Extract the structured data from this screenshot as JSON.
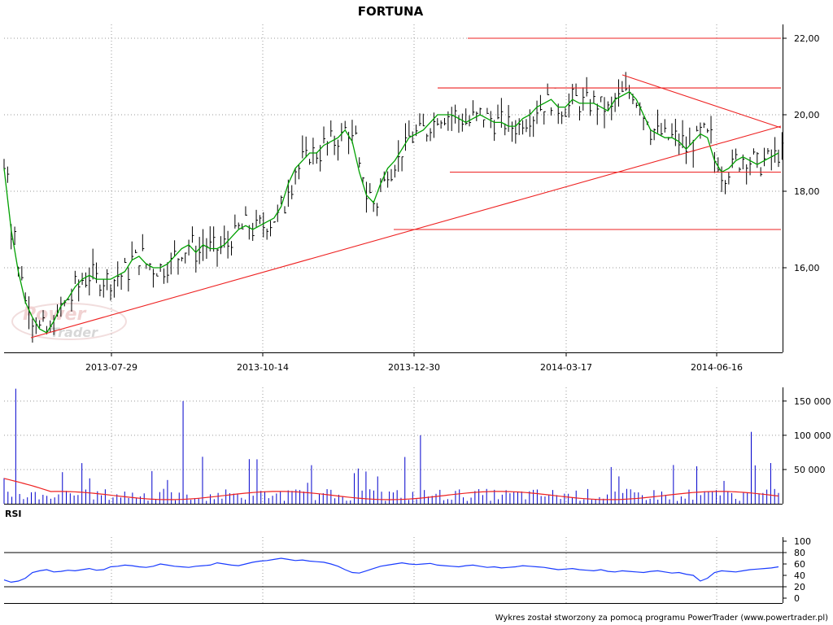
{
  "chart_data": [
    {
      "type": "candlestick",
      "title": "FORTUNA",
      "x_tick_labels": [
        "2013-07-29",
        "2013-10-14",
        "2013-12-30",
        "2014-03-17",
        "2014-06-16"
      ],
      "y_tick_labels": [
        "22,00",
        "20,00",
        "18,00",
        "16,00"
      ],
      "ylim": [
        14.2,
        22.3
      ],
      "grid": true,
      "series": [
        {
          "values": [
            18.6,
            17.0,
            15.9,
            15.1,
            14.7,
            14.4,
            14.3,
            14.6,
            15.0,
            15.2,
            15.5,
            15.7,
            15.8,
            15.7,
            15.7,
            15.7,
            15.8,
            15.9,
            16.2,
            16.3,
            16.1,
            16.0,
            16.0,
            16.1,
            16.3,
            16.5,
            16.6,
            16.4,
            16.6,
            16.5,
            16.5,
            16.6,
            16.8,
            17.0,
            17.1,
            17.0,
            17.1,
            17.2,
            17.3,
            17.6,
            18.2,
            18.6,
            18.8,
            19.0,
            19.0,
            19.2,
            19.3,
            19.4,
            19.6,
            19.3,
            18.5,
            17.9,
            17.7,
            18.2,
            18.6,
            18.8,
            19.1,
            19.4,
            19.5,
            19.6,
            19.8,
            20.0,
            20.0,
            20.0,
            19.9,
            19.8,
            19.9,
            20.0,
            19.9,
            19.8,
            19.8,
            19.7,
            19.7,
            19.9,
            20.0,
            20.2,
            20.3,
            20.4,
            20.2,
            20.2,
            20.4,
            20.3,
            20.3,
            20.3,
            20.2,
            20.1,
            20.4,
            20.5,
            20.6,
            20.4,
            20.0,
            19.6,
            19.5,
            19.4,
            19.4,
            19.3,
            19.1,
            19.3,
            19.5,
            19.4,
            18.8,
            18.5,
            18.6,
            18.8,
            18.9,
            18.8,
            18.7,
            18.8,
            18.9,
            19.0
          ],
          "start_date": "2013-06-10",
          "end_date": "2014-07-11"
        }
      ],
      "annotations": [
        {
          "label": "22,00",
          "value": 22.0
        },
        {
          "label": "20,70",
          "value": 20.7
        },
        {
          "label": "18,50",
          "value": 18.5
        },
        {
          "label": "17,00",
          "value": 17.0
        }
      ]
    },
    {
      "type": "bar",
      "y_tick_labels": [
        "150 000",
        "100 000",
        "50 000"
      ],
      "ylim": [
        0,
        170000
      ]
    },
    {
      "type": "line",
      "title": "RSI",
      "y_tick_labels": [
        "100",
        "80",
        "60",
        "40",
        "20",
        "0"
      ],
      "ylim": [
        0,
        100
      ],
      "reference_lines": [
        20,
        80
      ],
      "series": [
        {
          "values": [
            32,
            28,
            30,
            35,
            45,
            48,
            50,
            46,
            47,
            49,
            48,
            50,
            52,
            49,
            50,
            55,
            56,
            58,
            57,
            55,
            54,
            56,
            60,
            58,
            56,
            55,
            54,
            56,
            57,
            58,
            62,
            60,
            58,
            57,
            60,
            63,
            65,
            66,
            68,
            70,
            68,
            66,
            67,
            65,
            64,
            63,
            60,
            56,
            50,
            45,
            44,
            48,
            52,
            56,
            58,
            60,
            62,
            60,
            59,
            60,
            61,
            58,
            57,
            56,
            55,
            57,
            58,
            56,
            54,
            55,
            53,
            54,
            55,
            57,
            56,
            55,
            54,
            52,
            50,
            51,
            52,
            50,
            49,
            48,
            50,
            47,
            46,
            48,
            47,
            46,
            45,
            47,
            48,
            46,
            44,
            45,
            42,
            40,
            30,
            35,
            45,
            48,
            47,
            46,
            48,
            50,
            51,
            52,
            53,
            55
          ]
        }
      ]
    }
  ],
  "credit": "Wykres został stworzony za pomocą programu PowerTrader (www.powertrader.pl)",
  "watermark": "PowerTrader",
  "colors": {
    "price_bars": "#000000",
    "moving_average": "#00a000",
    "trend_lines": "#ee2222",
    "volume_bars": "#0000cc",
    "volume_average": "#ee2222",
    "rsi_line": "#1a3cff",
    "grid": "#999999"
  }
}
